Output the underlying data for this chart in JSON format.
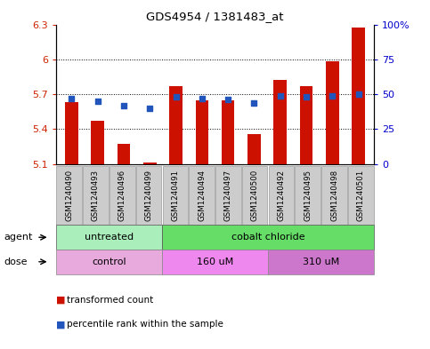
{
  "title": "GDS4954 / 1381483_at",
  "samples": [
    "GSM1240490",
    "GSM1240493",
    "GSM1240496",
    "GSM1240499",
    "GSM1240491",
    "GSM1240494",
    "GSM1240497",
    "GSM1240500",
    "GSM1240492",
    "GSM1240495",
    "GSM1240498",
    "GSM1240501"
  ],
  "transformed_counts": [
    5.63,
    5.47,
    5.27,
    5.11,
    5.77,
    5.65,
    5.65,
    5.36,
    5.82,
    5.77,
    5.98,
    6.27
  ],
  "percentile_values": [
    47,
    45,
    42,
    40,
    48,
    47,
    46,
    44,
    49,
    48,
    49,
    50
  ],
  "bar_bottom": 5.1,
  "ylim_left": [
    5.1,
    6.3
  ],
  "ylim_right": [
    0,
    100
  ],
  "yticks_left": [
    5.1,
    5.4,
    5.7,
    6.0,
    6.3
  ],
  "ytick_labels_left": [
    "5.1",
    "5.4",
    "5.7",
    "6",
    "6.3"
  ],
  "yticks_right": [
    0,
    25,
    50,
    75,
    100
  ],
  "ytick_labels_right": [
    "0",
    "25",
    "50",
    "75",
    "100%"
  ],
  "dotted_lines": [
    5.4,
    5.7,
    6.0
  ],
  "bar_color": "#cc1100",
  "dot_color": "#2255bb",
  "agent_groups": [
    {
      "label": "untreated",
      "start": 0,
      "end": 4,
      "color": "#aaeebb"
    },
    {
      "label": "cobalt chloride",
      "start": 4,
      "end": 12,
      "color": "#66dd66"
    }
  ],
  "dose_groups": [
    {
      "label": "control",
      "start": 0,
      "end": 4,
      "color": "#e8aadd"
    },
    {
      "label": "160 uM",
      "start": 4,
      "end": 8,
      "color": "#ee88ee"
    },
    {
      "label": "310 uM",
      "start": 8,
      "end": 12,
      "color": "#cc77cc"
    }
  ],
  "legend_bar_label": "transformed count",
  "legend_dot_label": "percentile rank within the sample",
  "agent_label": "agent",
  "dose_label": "dose",
  "background_color": "#ffffff",
  "bar_width": 0.5,
  "tick_label_color_left": "#cc2200",
  "tick_label_color_right": "#0000cc",
  "xlabel_bg": "#cccccc"
}
